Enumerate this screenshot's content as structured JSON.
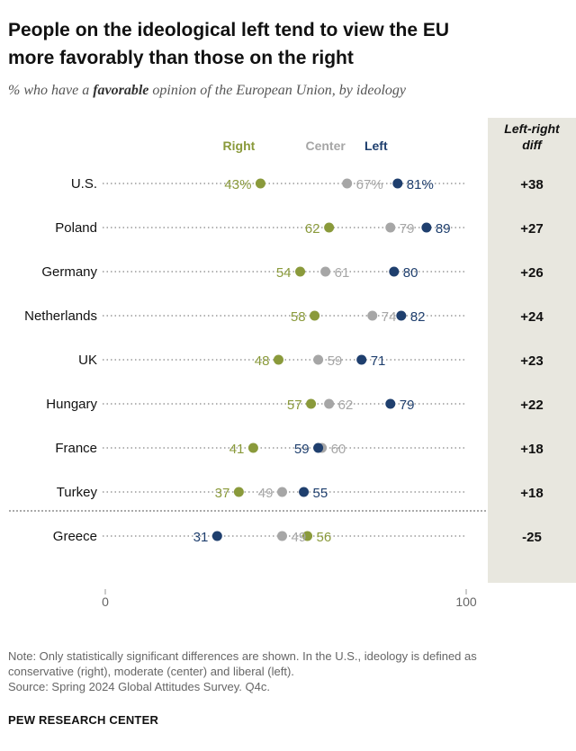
{
  "title_line1": "People on the ideological left tend to view the EU",
  "title_line2": "more favorably than those on the right",
  "subtitle_pre": "% who have a ",
  "subtitle_bold": "favorable",
  "subtitle_post": " opinion of the European Union, by ideology",
  "diff_header_line1": "Left-right",
  "diff_header_line2": "diff",
  "note_line1": "Note: Only statistically significant differences are shown. In the U.S., ideology is defined as",
  "note_line2": "conservative (right), moderate (center) and liberal (left).",
  "source": "Source: Spring 2024 Global Attitudes Survey. Q4c.",
  "brand": "PEW RESEARCH CENTER",
  "colors": {
    "right": "#8a9a3b",
    "center": "#a6a6a6",
    "left": "#1f3f6e",
    "dots": "#9a9a9a",
    "diff_bg": "#e8e7df"
  },
  "chart_data": {
    "type": "dot",
    "xlim": [
      0,
      100
    ],
    "x_ticks": [
      "0",
      "100"
    ],
    "legend": [
      "Right",
      "Center",
      "Left"
    ],
    "rows": [
      {
        "country": "U.S.",
        "right": 43,
        "center": 67,
        "left": 81,
        "right_label": "43%",
        "center_label": "67%",
        "left_label": "81%",
        "diff": "+38"
      },
      {
        "country": "Poland",
        "right": 62,
        "center": 79,
        "left": 89,
        "right_label": "62",
        "center_label": "79",
        "left_label": "89",
        "diff": "+27"
      },
      {
        "country": "Germany",
        "right": 54,
        "center": 61,
        "left": 80,
        "right_label": "54",
        "center_label": "61",
        "left_label": "80",
        "diff": "+26"
      },
      {
        "country": "Netherlands",
        "right": 58,
        "center": 74,
        "left": 82,
        "right_label": "58",
        "center_label": "74",
        "left_label": "82",
        "diff": "+24"
      },
      {
        "country": "UK",
        "right": 48,
        "center": 59,
        "left": 71,
        "right_label": "48",
        "center_label": "59",
        "left_label": "71",
        "diff": "+23"
      },
      {
        "country": "Hungary",
        "right": 57,
        "center": 62,
        "left": 79,
        "right_label": "57",
        "center_label": "62",
        "left_label": "79",
        "diff": "+22"
      },
      {
        "country": "France",
        "right": 41,
        "center": 60,
        "left": 59,
        "right_label": "41",
        "center_label": "60",
        "left_label": "59",
        "diff": "+18"
      },
      {
        "country": "Turkey",
        "right": 37,
        "center": 49,
        "left": 55,
        "right_label": "37",
        "center_label": "49",
        "left_label": "55",
        "diff": "+18"
      },
      {
        "country": "Greece",
        "right": 56,
        "center": 49,
        "left": 31,
        "right_label": "56",
        "center_label": "49",
        "left_label": "31",
        "diff": "-25"
      }
    ]
  }
}
